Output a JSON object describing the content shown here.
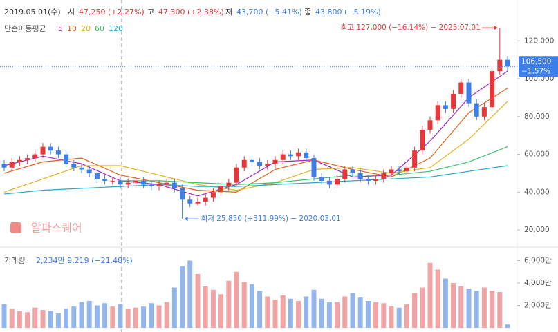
{
  "chart_data": {
    "type": "candlestick",
    "header": {
      "date": "2019.05.01(수)",
      "open_label": "시",
      "open": "47,250 (+2.27%)",
      "high_label": "고",
      "high": "47,300 (+2.38%)",
      "low_label": "저",
      "low": "43,700 (−5.41%)",
      "close_label": "종",
      "close": "43,800 (−5.19%)"
    },
    "ma_title": "단순이동평균",
    "up_color": "#e5383b",
    "down_color": "#3d7fe8",
    "vol_up_color": "#f2a3a3",
    "vol_down_color": "#94b6ef",
    "open": [
      55000,
      53000,
      56000,
      57000,
      58000,
      60000,
      64000,
      62000,
      60000,
      55000,
      53000,
      52000,
      50000,
      47000,
      46000,
      46000,
      44000,
      45000,
      46000,
      44000,
      43000,
      44000,
      45000,
      42000,
      36000,
      34000,
      35000,
      37000,
      40000,
      43000,
      45000,
      53000,
      57000,
      56000,
      54000,
      55000,
      57000,
      60000,
      59000,
      61000,
      58000,
      48000,
      46000,
      44000,
      47000,
      52000,
      50000,
      47000,
      46000,
      47000,
      50000,
      52000,
      51000,
      53000,
      62000,
      73000,
      78000,
      86000,
      84000,
      92000,
      98000,
      87000,
      80000,
      85000,
      104000,
      110000
    ],
    "high": [
      57000,
      58000,
      59000,
      60000,
      62000,
      66000,
      66000,
      64000,
      62000,
      57000,
      55000,
      54000,
      52000,
      49000,
      48000,
      48000,
      47000,
      48000,
      48000,
      46000,
      46000,
      47000,
      47000,
      44000,
      38000,
      37000,
      39000,
      42000,
      45000,
      47000,
      55000,
      59000,
      59000,
      58000,
      57000,
      59000,
      62000,
      62000,
      63000,
      63000,
      60000,
      50000,
      48000,
      49000,
      54000,
      54000,
      52000,
      49000,
      49000,
      52000,
      54000,
      54000,
      55000,
      64000,
      75000,
      80000,
      88000,
      88000,
      94000,
      100000,
      100000,
      89000,
      87000,
      106000,
      127000,
      112000
    ],
    "low": [
      51000,
      51000,
      54000,
      55000,
      56000,
      58000,
      60000,
      58000,
      53000,
      51000,
      50000,
      48000,
      45000,
      44000,
      44000,
      42000,
      42000,
      43000,
      42000,
      41000,
      41000,
      42000,
      40000,
      25850,
      32000,
      33000,
      33000,
      35000,
      38000,
      41000,
      43000,
      51000,
      54000,
      52000,
      52000,
      53000,
      55000,
      57000,
      57000,
      56000,
      46000,
      44000,
      42000,
      42000,
      45000,
      48000,
      45000,
      44000,
      44000,
      45000,
      48000,
      49000,
      49000,
      51000,
      60000,
      71000,
      76000,
      82000,
      82000,
      90000,
      85000,
      78000,
      78000,
      83000,
      102000,
      104000
    ],
    "close": [
      53000,
      56000,
      57000,
      58000,
      60000,
      64000,
      62000,
      60000,
      55000,
      53000,
      52000,
      50000,
      47000,
      46000,
      46000,
      44000,
      45000,
      46000,
      44000,
      43000,
      44000,
      45000,
      42000,
      36000,
      34000,
      35000,
      37000,
      40000,
      43000,
      45000,
      53000,
      57000,
      56000,
      54000,
      55000,
      57000,
      60000,
      59000,
      61000,
      58000,
      48000,
      46000,
      44000,
      47000,
      52000,
      50000,
      47000,
      46000,
      47000,
      50000,
      52000,
      51000,
      53000,
      62000,
      73000,
      78000,
      86000,
      84000,
      92000,
      98000,
      87000,
      80000,
      85000,
      104000,
      110000,
      106500
    ],
    "ma_x": [
      0,
      5,
      10,
      15,
      20,
      25,
      30,
      35,
      40,
      45,
      50,
      55,
      60,
      65
    ],
    "ma": [
      {
        "name": "5",
        "color": "#a226c4",
        "values": [
          54000,
          59000,
          55000,
          46000,
          44000,
          38000,
          44000,
          56000,
          57000,
          48000,
          49000,
          67000,
          90000,
          104000
        ]
      },
      {
        "name": "10",
        "color": "#e2621b",
        "values": [
          50000,
          56000,
          58000,
          49000,
          45000,
          41000,
          40000,
          52000,
          57000,
          52000,
          48000,
          58000,
          82000,
          95000
        ]
      },
      {
        "name": "20",
        "color": "#e3b21f",
        "values": [
          40000,
          47000,
          54000,
          54000,
          49000,
          44000,
          41000,
          45000,
          52000,
          53000,
          50000,
          53000,
          68000,
          88000
        ]
      },
      {
        "name": "60",
        "color": "#3fbf6c",
        "values": [
          null,
          null,
          null,
          46000,
          46000,
          45000,
          44000,
          45000,
          47000,
          49000,
          49000,
          51000,
          56000,
          64000
        ]
      },
      {
        "name": "120",
        "color": "#22a9c9",
        "values": [
          39000,
          41000,
          42000,
          43000,
          44000,
          43000,
          43000,
          44000,
          45000,
          46000,
          47000,
          48000,
          51000,
          54000
        ]
      }
    ],
    "ylim": [
      12000,
      138000
    ],
    "yticks": [
      {
        "value": 20000,
        "label": "20,000"
      },
      {
        "value": 40000,
        "label": "40,000"
      },
      {
        "value": 60000,
        "label": "60,000"
      },
      {
        "value": 80000,
        "label": "80,000"
      },
      {
        "value": 100000,
        "label": "100,000"
      },
      {
        "value": 120000,
        "label": "120,000"
      }
    ],
    "last": {
      "value": 106500,
      "label": "106,500",
      "change": "−1.57%"
    },
    "high_note": "최고 127,000 (−16.14%) − 2025.07.01",
    "low_note": "최저 25,850 (+311.99%) − 2020.03.01",
    "watermark": "알파스퀘어",
    "volume_title": "거래량",
    "volume_info": "2,234만 9,219 (−21.48%)",
    "volume": [
      2100,
      1700,
      1500,
      1400,
      1800,
      1600,
      1500,
      1300,
      1700,
      1900,
      2300,
      2400,
      2000,
      2200,
      1900,
      2100,
      1700,
      1800,
      1900,
      2200,
      2000,
      2300,
      3600,
      5500,
      6000,
      4800,
      3700,
      3400,
      3000,
      4200,
      5000,
      4100,
      3900,
      3300,
      2800,
      2500,
      2900,
      2600,
      2400,
      2800,
      3400,
      2600,
      2300,
      2300,
      2800,
      3100,
      2700,
      2400,
      2300,
      2200,
      1900,
      1800,
      2100,
      3100,
      3600,
      5800,
      5200,
      4400,
      4000,
      3700,
      3500,
      3300,
      3600,
      3300,
      3200,
      300
    ],
    "vlim": [
      0,
      6770
    ],
    "vticks": [
      {
        "value": 2000,
        "label": "2,000만"
      },
      {
        "value": 4000,
        "label": "4,000만"
      },
      {
        "value": 6000,
        "label": "6,000만"
      }
    ]
  }
}
